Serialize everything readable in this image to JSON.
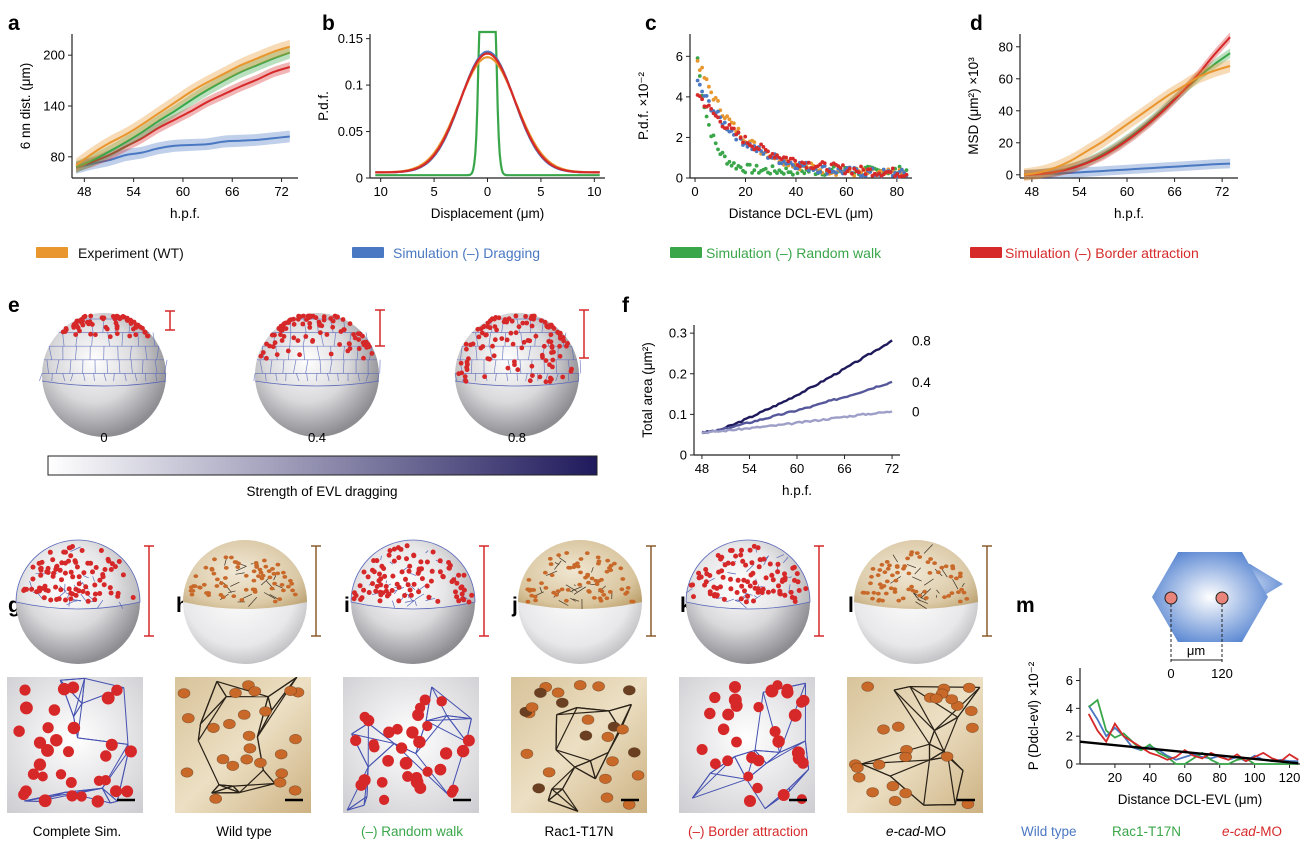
{
  "colors": {
    "experiment": "#e8962d",
    "dragging": "#4a78c2",
    "random_walk": "#3aa64a",
    "border_attraction": "#d62a2a",
    "dot_sim": "#d62828",
    "dot_exp": "#c8692a",
    "scale_sim": "#d62828",
    "scale_exp": "#8a5a2b"
  },
  "panels": {
    "a": "a",
    "b": "b",
    "c": "c",
    "d": "d",
    "e": "e",
    "f": "f",
    "g": "g",
    "h": "h",
    "i": "i",
    "j": "j",
    "k": "k",
    "l": "l",
    "m": "m"
  },
  "legend": {
    "experiment": "Experiment (WT)",
    "dragging": "Simulation (–) Dragging",
    "random_walk": "Simulation (–) Random walk",
    "border_attraction": "Simulation (–) Border attraction"
  },
  "panel_e": {
    "labels": [
      "0",
      "0.4",
      "0.8"
    ],
    "colorbar_label": "Strength of EVL dragging",
    "colorbar_from": "#ffffff",
    "colorbar_to": "#1f1a5c"
  },
  "captions": {
    "g": "Complete Sim.",
    "h": "Wild type",
    "i": "(–) Random walk",
    "j": "Rac1-T17N",
    "k": "(–) Border attraction",
    "l_italic": "e-cad",
    "l_rest": "-MO"
  },
  "panel_m_legend": {
    "wild_type": "Wild type",
    "rac1": "Rac1-T17N",
    "ecad_italic": "e-cad",
    "ecad_rest": "-MO"
  },
  "panel_m_inset": {
    "unit": "μm",
    "left": "0",
    "right": "120"
  },
  "chart_data": [
    {
      "id": "a",
      "type": "line",
      "xlabel": "h.p.f.",
      "ylabel": "6 nn dist. (μm)",
      "xlim": [
        46.5,
        74
      ],
      "ylim": [
        55,
        225
      ],
      "xticks": [
        48,
        54,
        60,
        66,
        72
      ],
      "yticks": [
        80,
        140,
        200
      ],
      "series": [
        {
          "key": "dragging",
          "x": [
            47,
            49,
            51,
            53,
            55,
            57,
            59,
            61,
            63,
            65,
            67,
            69,
            71,
            73
          ],
          "y": [
            67,
            72,
            76,
            82,
            85,
            90,
            93,
            94,
            95,
            98,
            99,
            100,
            102,
            104
          ],
          "band": 7
        },
        {
          "key": "border_attraction",
          "x": [
            47,
            49,
            51,
            53,
            55,
            57,
            59,
            61,
            63,
            65,
            67,
            69,
            71,
            73
          ],
          "y": [
            68,
            74,
            82,
            92,
            102,
            114,
            124,
            134,
            145,
            154,
            163,
            171,
            180,
            186
          ],
          "band": 6
        },
        {
          "key": "random_walk",
          "x": [
            47,
            49,
            51,
            53,
            55,
            57,
            59,
            61,
            63,
            65,
            67,
            69,
            71,
            73
          ],
          "y": [
            68,
            76,
            86,
            97,
            109,
            122,
            134,
            147,
            159,
            170,
            180,
            188,
            196,
            203
          ],
          "band": 7
        },
        {
          "key": "experiment",
          "x": [
            47,
            49,
            51,
            53,
            55,
            57,
            59,
            61,
            63,
            65,
            67,
            69,
            71,
            73
          ],
          "y": [
            70,
            84,
            96,
            106,
            118,
            131,
            144,
            157,
            168,
            178,
            188,
            196,
            204,
            210
          ],
          "band": 8
        }
      ]
    },
    {
      "id": "b",
      "type": "line",
      "xlabel": "Displacement (μm)",
      "ylabel": "P.d.f.",
      "xlim": [
        -11,
        11
      ],
      "ylim": [
        0,
        0.155
      ],
      "xticks": [
        -10,
        -5,
        0,
        5,
        10
      ],
      "xticklabels": [
        "10",
        "5",
        "0",
        "5",
        "10"
      ],
      "yticks": [
        0,
        0.05,
        0.1,
        0.15
      ],
      "yticklabels": [
        "0",
        "0.05",
        "0.1",
        "0.15"
      ],
      "series": [
        {
          "key": "random_walk",
          "gaussian": {
            "a": 0.95,
            "sigma": 0.42,
            "base": 0.003
          }
        },
        {
          "key": "dragging",
          "gaussian": {
            "a": 0.13,
            "sigma": 2.5,
            "base": 0.006
          }
        },
        {
          "key": "experiment",
          "gaussian": {
            "a": 0.124,
            "sigma": 2.65,
            "base": 0.006
          }
        },
        {
          "key": "border_attraction",
          "gaussian": {
            "a": 0.128,
            "sigma": 2.55,
            "base": 0.006
          }
        }
      ]
    },
    {
      "id": "c",
      "type": "scatter",
      "xlabel": "Distance DCL-EVL (μm)",
      "ylabel": "P.d.f. ×10⁻²",
      "xlim": [
        -2,
        86
      ],
      "ylim": [
        0,
        7.1
      ],
      "xticks": [
        0,
        20,
        40,
        60,
        80
      ],
      "yticks": [
        0,
        2,
        4,
        6
      ],
      "series": [
        {
          "key": "random_walk",
          "decay": {
            "a": 6.8,
            "k": 0.2,
            "base": 0.35
          }
        },
        {
          "key": "experiment",
          "decay": {
            "a": 6.0,
            "k": 0.06,
            "base": 0.15
          }
        },
        {
          "key": "dragging",
          "decay": {
            "a": 4.8,
            "k": 0.055,
            "base": 0.15
          }
        },
        {
          "key": "border_attraction",
          "decay": {
            "a": 4.2,
            "k": 0.045,
            "base": 0.15
          }
        }
      ]
    },
    {
      "id": "d",
      "type": "line",
      "xlabel": "h.p.f.",
      "ylabel": "MSD (μm²) ×10³",
      "xlim": [
        46.5,
        74
      ],
      "ylim": [
        -2,
        88
      ],
      "xticks": [
        48,
        54,
        60,
        66,
        72
      ],
      "yticks": [
        0,
        20,
        40,
        60,
        80
      ],
      "series": [
        {
          "key": "dragging",
          "x": [
            47,
            49,
            51,
            53,
            55,
            57,
            59,
            61,
            63,
            65,
            67,
            69,
            71,
            73
          ],
          "y": [
            0,
            0.3,
            0.7,
            1.2,
            1.8,
            2.4,
            3.0,
            3.6,
            4.2,
            4.8,
            5.4,
            6.0,
            6.6,
            7.0
          ],
          "band": 3
        },
        {
          "key": "random_walk",
          "x": [
            47,
            49,
            51,
            53,
            55,
            57,
            59,
            61,
            63,
            65,
            67,
            69,
            71,
            73
          ],
          "y": [
            0,
            0.6,
            2,
            4.5,
            8,
            13,
            19,
            26,
            34,
            43,
            52,
            61,
            69,
            76
          ],
          "band": 3
        },
        {
          "key": "border_attraction",
          "x": [
            47,
            49,
            51,
            53,
            55,
            57,
            59,
            61,
            63,
            65,
            67,
            69,
            71,
            73
          ],
          "y": [
            0,
            0.5,
            1.8,
            4,
            7.5,
            12,
            18,
            25,
            33,
            42,
            52,
            63,
            75,
            86
          ],
          "band": 3
        },
        {
          "key": "experiment",
          "x": [
            47,
            49,
            51,
            53,
            55,
            57,
            59,
            61,
            63,
            65,
            67,
            69,
            71,
            73
          ],
          "y": [
            0,
            1.5,
            4.5,
            9,
            15,
            21,
            28,
            35,
            42,
            49,
            55,
            61,
            65,
            68
          ],
          "band": 4
        }
      ]
    },
    {
      "id": "f",
      "type": "line",
      "xlabel": "h.p.f.",
      "ylabel": "Total area (μm²)",
      "xlim": [
        47,
        73
      ],
      "ylim": [
        0,
        0.32
      ],
      "xticks": [
        48,
        54,
        60,
        66,
        72
      ],
      "yticks": [
        0,
        0.1,
        0.2,
        0.3
      ],
      "yticklabels": [
        "0",
        "0.1",
        "0.2",
        "0.3"
      ],
      "series": [
        {
          "name": "0.8",
          "color": "#1f1a5c",
          "x": [
            48,
            50,
            52,
            54,
            56,
            58,
            60,
            62,
            64,
            66,
            68,
            70,
            72
          ],
          "y": [
            0.055,
            0.06,
            0.075,
            0.092,
            0.11,
            0.128,
            0.148,
            0.168,
            0.19,
            0.212,
            0.235,
            0.258,
            0.282
          ]
        },
        {
          "name": "0.4",
          "color": "#55579b",
          "x": [
            48,
            50,
            52,
            54,
            56,
            58,
            60,
            62,
            64,
            66,
            68,
            70,
            72
          ],
          "y": [
            0.055,
            0.06,
            0.07,
            0.08,
            0.09,
            0.1,
            0.11,
            0.12,
            0.132,
            0.143,
            0.155,
            0.168,
            0.18
          ]
        },
        {
          "name": "0",
          "color": "#9e9fc8",
          "x": [
            48,
            50,
            52,
            54,
            56,
            58,
            60,
            62,
            64,
            66,
            68,
            70,
            72
          ],
          "y": [
            0.055,
            0.058,
            0.062,
            0.066,
            0.07,
            0.074,
            0.079,
            0.084,
            0.089,
            0.094,
            0.099,
            0.103,
            0.107
          ]
        }
      ]
    },
    {
      "id": "m",
      "type": "line",
      "xlabel": "Distance DCL-EVL (μm)",
      "ylabel": "P (Ddcl-evl) ×10⁻²",
      "xlim": [
        0,
        126
      ],
      "ylim": [
        0,
        6.9
      ],
      "xticks": [
        20,
        40,
        60,
        80,
        100,
        120
      ],
      "yticks": [
        0,
        2,
        4,
        6
      ],
      "series": [
        {
          "key": "dragging",
          "label": "Wild type",
          "x": [
            5,
            10,
            15,
            20,
            25,
            30,
            35,
            40,
            45,
            50,
            55,
            60,
            65,
            70,
            75,
            80,
            85,
            90,
            95,
            100,
            105,
            110,
            115,
            120,
            125
          ],
          "y": [
            4.2,
            3.2,
            2.0,
            2.6,
            2.0,
            1.2,
            1.0,
            1.3,
            1.0,
            0.6,
            0.3,
            0.5,
            0.7,
            0.5,
            0.4,
            0.6,
            0.3,
            0.5,
            0.2,
            0.6,
            0.3,
            0.2,
            0.3,
            0.2,
            0.2
          ]
        },
        {
          "key": "random_walk",
          "label": "Rac1-T17N",
          "x": [
            5,
            10,
            15,
            20,
            25,
            30,
            35,
            40,
            45,
            50,
            55,
            60,
            65,
            70,
            75,
            80,
            85,
            90,
            95,
            100,
            105,
            110,
            115,
            120,
            125
          ],
          "y": [
            4.1,
            4.6,
            2.4,
            1.9,
            2.2,
            1.6,
            1.0,
            1.4,
            0.8,
            0.5,
            0.0,
            0.0,
            0.4,
            0.8,
            0.3,
            0.0,
            0.0,
            0.3,
            0.4,
            0.0,
            0.0,
            0.0,
            0.0,
            0.0,
            0.0
          ]
        },
        {
          "key": "border_attraction",
          "label": "e-cad-MO",
          "x": [
            5,
            10,
            15,
            20,
            25,
            30,
            35,
            40,
            45,
            50,
            55,
            60,
            65,
            70,
            75,
            80,
            85,
            90,
            95,
            100,
            105,
            110,
            115,
            120,
            125
          ],
          "y": [
            3.6,
            2.4,
            1.6,
            2.9,
            2.0,
            1.6,
            1.2,
            0.8,
            0.6,
            0.3,
            0.5,
            1.0,
            0.6,
            0.4,
            0.8,
            0.5,
            0.3,
            0.7,
            0.2,
            0.5,
            0.8,
            0.4,
            0.2,
            0.7,
            0.3
          ]
        },
        {
          "key": "fit",
          "color": "#000000",
          "x": [
            0,
            125
          ],
          "y": [
            1.6,
            0.05
          ]
        }
      ]
    }
  ]
}
